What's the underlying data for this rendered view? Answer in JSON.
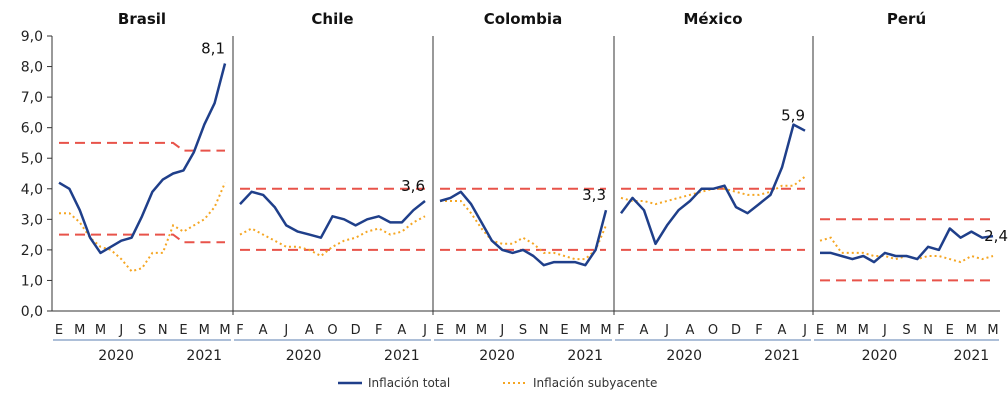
{
  "colors": {
    "total": "#1f3f8a",
    "subyacente": "#f5a623",
    "band": "#e8534a",
    "axis": "#333333",
    "year_line": "#5b7fb0"
  },
  "legend": {
    "total_label": "Inflación total",
    "subyacente_label": "Inflación subyacente"
  },
  "chart_data": {
    "type": "line",
    "ylim": [
      0,
      9
    ],
    "yticks": [
      "0,0",
      "1,0",
      "2,0",
      "3,0",
      "4,0",
      "5,0",
      "6,0",
      "7,0",
      "8,0",
      "9,0"
    ],
    "panels": [
      {
        "title": "Brasil",
        "month_labels": [
          "E",
          "M",
          "M",
          "J",
          "S",
          "N",
          "E",
          "M",
          "M"
        ],
        "year_labels": [
          "2020",
          "2021"
        ],
        "end_label": "8,1",
        "total": [
          4.2,
          4.0,
          3.3,
          2.4,
          1.9,
          2.1,
          2.3,
          2.4,
          3.1,
          3.9,
          4.3,
          4.5,
          4.6,
          5.2,
          6.1,
          6.8,
          8.1
        ],
        "core": [
          3.2,
          3.2,
          2.9,
          2.4,
          2.1,
          2.0,
          1.7,
          1.3,
          1.4,
          1.9,
          1.9,
          2.8,
          2.6,
          2.8,
          3.0,
          3.4,
          4.2
        ],
        "upper": [
          5.5,
          5.5,
          5.5,
          5.5,
          5.5,
          5.5,
          5.5,
          5.5,
          5.5,
          5.5,
          5.5,
          5.5,
          5.25,
          5.25,
          5.25,
          5.25,
          5.25
        ],
        "lower": [
          2.5,
          2.5,
          2.5,
          2.5,
          2.5,
          2.5,
          2.5,
          2.5,
          2.5,
          2.5,
          2.5,
          2.5,
          2.25,
          2.25,
          2.25,
          2.25,
          2.25
        ]
      },
      {
        "title": "Chile",
        "month_labels": [
          "F",
          "A",
          "J",
          "A",
          "O",
          "D",
          "F",
          "A",
          "J"
        ],
        "year_labels": [
          "2020",
          "2021"
        ],
        "end_label": "3,6",
        "total": [
          3.5,
          3.9,
          3.8,
          3.4,
          2.8,
          2.6,
          2.5,
          2.4,
          3.1,
          3.0,
          2.8,
          3.0,
          3.1,
          2.9,
          2.9,
          3.3,
          3.6
        ],
        "core": [
          2.5,
          2.7,
          2.5,
          2.3,
          2.1,
          2.1,
          2.0,
          1.8,
          2.1,
          2.3,
          2.4,
          2.6,
          2.7,
          2.5,
          2.6,
          2.9,
          3.1
        ],
        "upper": [
          4.0,
          4.0,
          4.0,
          4.0,
          4.0,
          4.0,
          4.0,
          4.0,
          4.0,
          4.0,
          4.0,
          4.0,
          4.0,
          4.0,
          4.0,
          4.0,
          4.0
        ],
        "lower": [
          2.0,
          2.0,
          2.0,
          2.0,
          2.0,
          2.0,
          2.0,
          2.0,
          2.0,
          2.0,
          2.0,
          2.0,
          2.0,
          2.0,
          2.0,
          2.0,
          2.0
        ]
      },
      {
        "title": "Colombia",
        "month_labels": [
          "E",
          "M",
          "M",
          "J",
          "S",
          "N",
          "E",
          "M",
          "M"
        ],
        "year_labels": [
          "2020",
          "2021"
        ],
        "end_label": "3,3",
        "total": [
          3.6,
          3.7,
          3.9,
          3.5,
          2.9,
          2.3,
          2.0,
          1.9,
          2.0,
          1.8,
          1.5,
          1.6,
          1.6,
          1.6,
          1.5,
          2.0,
          3.3
        ],
        "core": [
          3.6,
          3.6,
          3.6,
          3.2,
          2.7,
          2.3,
          2.2,
          2.2,
          2.4,
          2.2,
          1.9,
          1.9,
          1.8,
          1.7,
          1.7,
          2.0,
          2.8
        ],
        "upper": [
          4.0,
          4.0,
          4.0,
          4.0,
          4.0,
          4.0,
          4.0,
          4.0,
          4.0,
          4.0,
          4.0,
          4.0,
          4.0,
          4.0,
          4.0,
          4.0,
          4.0
        ],
        "lower": [
          2.0,
          2.0,
          2.0,
          2.0,
          2.0,
          2.0,
          2.0,
          2.0,
          2.0,
          2.0,
          2.0,
          2.0,
          2.0,
          2.0,
          2.0,
          2.0,
          2.0
        ]
      },
      {
        "title": "México",
        "month_labels": [
          "F",
          "A",
          "J",
          "A",
          "O",
          "D",
          "F",
          "A",
          "J"
        ],
        "year_labels": [
          "2020",
          "2021"
        ],
        "end_label": "5,9",
        "total": [
          3.2,
          3.7,
          3.3,
          2.2,
          2.8,
          3.3,
          3.6,
          4.0,
          4.0,
          4.1,
          3.4,
          3.2,
          3.5,
          3.8,
          4.7,
          6.1,
          5.9
        ],
        "core": [
          3.7,
          3.6,
          3.6,
          3.5,
          3.6,
          3.7,
          3.8,
          3.9,
          4.0,
          4.0,
          3.9,
          3.8,
          3.8,
          3.9,
          4.1,
          4.1,
          4.4
        ],
        "upper": [
          4.0,
          4.0,
          4.0,
          4.0,
          4.0,
          4.0,
          4.0,
          4.0,
          4.0,
          4.0,
          4.0,
          4.0,
          4.0,
          4.0,
          4.0,
          4.0,
          4.0
        ],
        "lower": [
          2.0,
          2.0,
          2.0,
          2.0,
          2.0,
          2.0,
          2.0,
          2.0,
          2.0,
          2.0,
          2.0,
          2.0,
          2.0,
          2.0,
          2.0,
          2.0,
          2.0
        ]
      },
      {
        "title": "Perú",
        "month_labels": [
          "E",
          "M",
          "M",
          "J",
          "S",
          "N",
          "E",
          "M",
          "M"
        ],
        "year_labels": [
          "2020",
          "2021"
        ],
        "end_label": "2,4",
        "total": [
          1.9,
          1.9,
          1.8,
          1.7,
          1.8,
          1.6,
          1.9,
          1.8,
          1.8,
          1.7,
          2.1,
          2.0,
          2.7,
          2.4,
          2.6,
          2.4,
          2.45
        ],
        "core": [
          2.3,
          2.4,
          1.9,
          1.9,
          1.9,
          1.8,
          1.8,
          1.7,
          1.8,
          1.7,
          1.8,
          1.8,
          1.7,
          1.6,
          1.8,
          1.7,
          1.8
        ],
        "upper": [
          3.0,
          3.0,
          3.0,
          3.0,
          3.0,
          3.0,
          3.0,
          3.0,
          3.0,
          3.0,
          3.0,
          3.0,
          3.0,
          3.0,
          3.0,
          3.0,
          3.0
        ],
        "lower": [
          1.0,
          1.0,
          1.0,
          1.0,
          1.0,
          1.0,
          1.0,
          1.0,
          1.0,
          1.0,
          1.0,
          1.0,
          1.0,
          1.0,
          1.0,
          1.0,
          1.0
        ]
      }
    ]
  }
}
